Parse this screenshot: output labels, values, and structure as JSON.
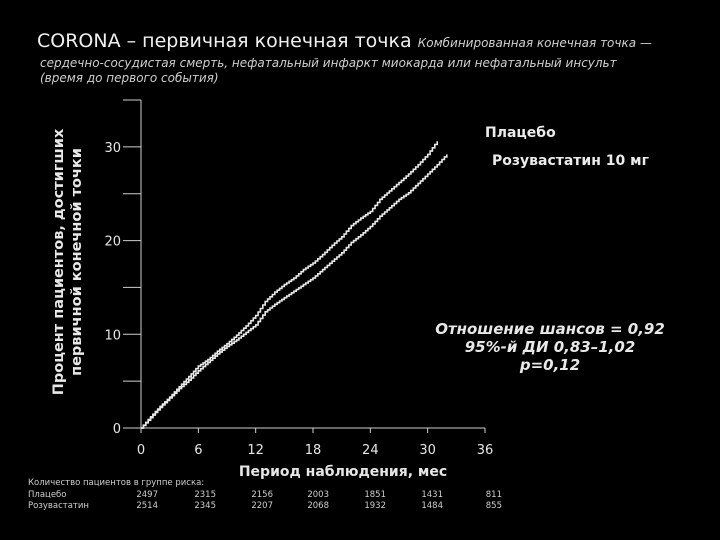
{
  "header": {
    "title": "CORONA – первичная конечная точка",
    "title_note": "Комбинированная конечная точка —",
    "subtitle_lines": [
      "сердечно-сосудистая смерть, нефатальный инфаркт миокарда или нефатальный инсульт",
      "(время до первого события)"
    ]
  },
  "chart_data": {
    "type": "line",
    "xlabel": "Период наблюдения, мес",
    "ylabel_lines": [
      "Процент пациентов, достигших",
      "первичной конечной точки"
    ],
    "xlim": [
      0,
      36
    ],
    "ylim": [
      0,
      35
    ],
    "x_ticks": [
      0,
      6,
      12,
      18,
      24,
      30,
      36
    ],
    "y_ticks": [
      0,
      10,
      20,
      30
    ],
    "grid": false,
    "series": [
      {
        "name": "Плацебо",
        "color": "#e8e8e8",
        "x": [
          0,
          1,
          2,
          3,
          4,
          5,
          6,
          7,
          8,
          9,
          10,
          11,
          12,
          13,
          14,
          15,
          16,
          17,
          18,
          19,
          20,
          21,
          22,
          23,
          24,
          25,
          26,
          27,
          28,
          29,
          30,
          31
        ],
        "y": [
          0,
          1.2,
          2.3,
          3.3,
          4.4,
          5.5,
          6.6,
          7.3,
          8.2,
          9.0,
          9.9,
          10.9,
          12.0,
          13.5,
          14.5,
          15.3,
          16.0,
          16.9,
          17.6,
          18.5,
          19.5,
          20.4,
          21.6,
          22.4,
          23.1,
          24.4,
          25.3,
          26.2,
          27.1,
          28.1,
          29.2,
          30.6
        ]
      },
      {
        "name": "Розувастатин 10 мг",
        "color": "#e8e8e8",
        "x": [
          0,
          1,
          2,
          3,
          4,
          5,
          6,
          7,
          8,
          9,
          10,
          11,
          12,
          13,
          14,
          15,
          16,
          17,
          18,
          19,
          20,
          21,
          22,
          23,
          24,
          25,
          26,
          27,
          28,
          29,
          30,
          31,
          32
        ],
        "y": [
          0,
          1.1,
          2.2,
          3.2,
          4.2,
          5.1,
          6.1,
          7.0,
          7.9,
          8.7,
          9.4,
          10.2,
          11.0,
          12.4,
          13.2,
          13.9,
          14.6,
          15.3,
          16.0,
          16.9,
          17.8,
          18.7,
          19.8,
          20.6,
          21.5,
          22.6,
          23.5,
          24.4,
          25.1,
          26.1,
          27.1,
          28.1,
          29.2
        ]
      }
    ],
    "annotations": [
      "Отношение шансов = 0,92",
      "95%-й ДИ 0,83–1,02",
      "p=0,12"
    ]
  },
  "risk_table": {
    "title": "Количество пациентов в группе риска:",
    "rows": [
      {
        "name": "Плацебо",
        "values": [
          "2497",
          "2315",
          "2156",
          "2003",
          "1851",
          "1431",
          "811"
        ]
      },
      {
        "name": "Розувастатин",
        "values": [
          "2514",
          "2345",
          "2207",
          "2068",
          "1932",
          "1484",
          "855"
        ]
      }
    ]
  }
}
